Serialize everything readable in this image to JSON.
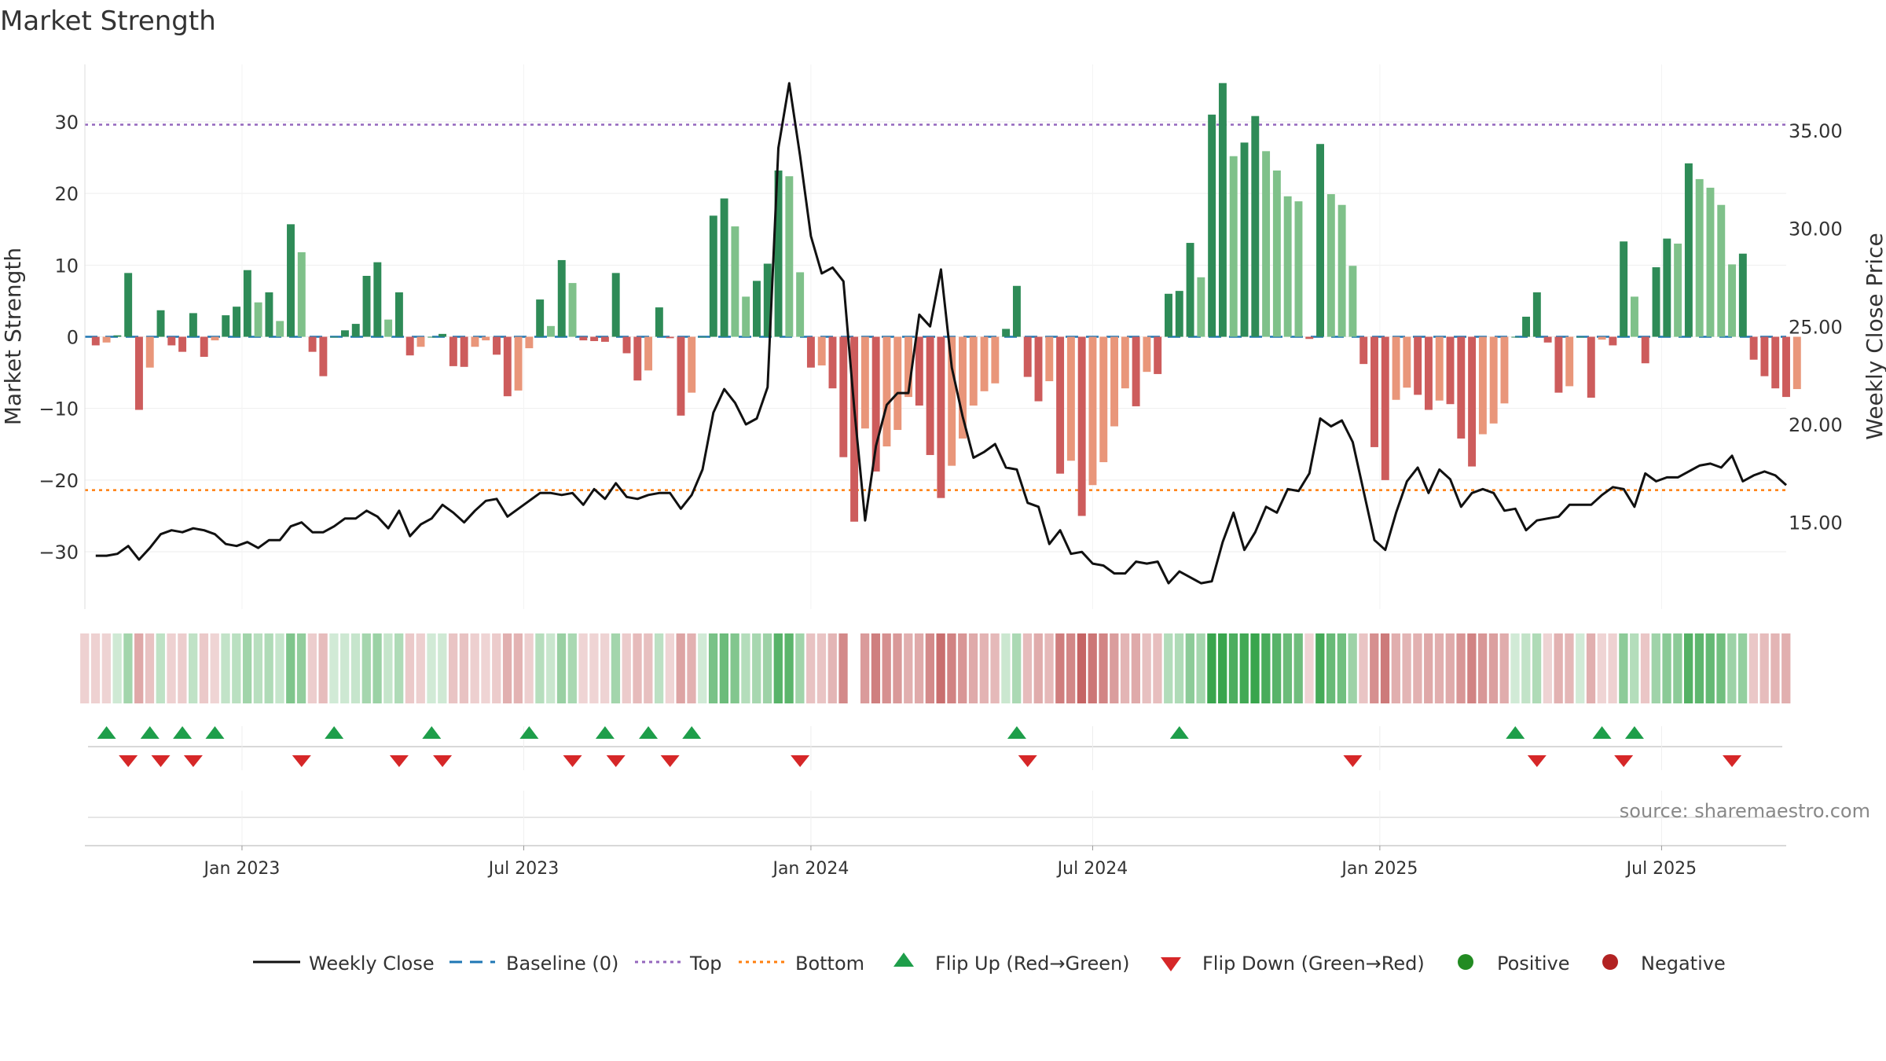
{
  "chart_data": {
    "type": "bar",
    "title": "Market Strength",
    "ylabel": "Market Strength",
    "y2label": "Weekly Close Price",
    "ylim": [
      -38,
      38
    ],
    "y2lim": [
      10.58,
      38.36
    ],
    "yticks": [
      30,
      20,
      10,
      0,
      -10,
      -20,
      -30
    ],
    "ytick_labels": [
      "30",
      "20",
      "10",
      "0",
      "−10",
      "−20",
      "−30"
    ],
    "y2ticks": [
      35,
      30,
      25,
      20,
      15
    ],
    "y2tick_labels": [
      "35.00",
      "30.00",
      "25.00",
      "20.00",
      "15.00"
    ],
    "x_range_weeks": [
      -1,
      156
    ],
    "x_ticks": [
      {
        "week": 13.5,
        "label": "Jan 2023"
      },
      {
        "week": 39.5,
        "label": "Jul 2023"
      },
      {
        "week": 66,
        "label": "Jan 2024"
      },
      {
        "week": 92,
        "label": "Jul 2024"
      },
      {
        "week": 118.5,
        "label": "Jan 2025"
      },
      {
        "week": 144.5,
        "label": "Jul 2025"
      }
    ],
    "top_level": 29.6,
    "bottom_level": -21.4,
    "strength": [
      -1.2,
      -0.8,
      0.2,
      8.9,
      -10.2,
      -4.3,
      3.7,
      -1.2,
      -2.1,
      3.3,
      -2.8,
      -0.5,
      3,
      4.2,
      9.3,
      4.8,
      6.2,
      2.2,
      15.7,
      11.8,
      -2.1,
      -5.5,
      0,
      0.9,
      1.8,
      8.5,
      10.4,
      2.4,
      6.2,
      -2.6,
      -1.4,
      0,
      0.4,
      -4.1,
      -4.2,
      -1.4,
      -0.5,
      -2.5,
      -8.3,
      -7.5,
      -1.6,
      5.2,
      1.5,
      10.7,
      7.5,
      -0.5,
      -0.6,
      -0.7,
      8.9,
      -2.3,
      -6.1,
      -4.7,
      4.1,
      -0.2,
      -11,
      -7.8,
      0,
      16.9,
      19.3,
      15.4,
      5.6,
      7.8,
      10.2,
      23.2,
      22.4,
      9,
      -4.3,
      -4,
      -7.2,
      -16.8,
      -25.8,
      -12.8,
      -18.8,
      -15.3,
      -13,
      -8.4,
      -9.6,
      -16.5,
      -22.5,
      -18,
      -14.2,
      -9.6,
      -7.6,
      -6.5,
      1.1,
      7.1,
      -5.6,
      -9,
      -6.2,
      -19.1,
      -17.3,
      -25,
      -20.7,
      -17.5,
      -12.5,
      -7.2,
      -9.7,
      -4.9,
      -5.2,
      6,
      6.4,
      13.1,
      8.3,
      31,
      35.4,
      25.2,
      27.1,
      30.8,
      25.9,
      23.2,
      19.6,
      18.9,
      -0.3,
      26.9,
      19.9,
      18.4,
      9.9,
      -3.8,
      -15.4,
      -20,
      -8.8,
      -7.1,
      -8.1,
      -10.2,
      -8.9,
      -9.4,
      -14.2,
      -18.1,
      -13.6,
      -12.1,
      -9.3,
      0,
      2.8,
      6.2,
      -0.8,
      -7.8,
      -6.9,
      0,
      -8.5,
      -0.4,
      -1.2,
      13.3,
      5.6,
      -3.7,
      9.7,
      13.7,
      13,
      24.2,
      22,
      20.8,
      18.4,
      10.1,
      11.6,
      -3.2,
      -5.5,
      -7.2,
      -8.4,
      -7.3
    ],
    "weekly_close": [
      13.3,
      13.3,
      13.4,
      13.8,
      13.1,
      13.7,
      14.4,
      14.6,
      14.5,
      14.7,
      14.6,
      14.4,
      13.9,
      13.8,
      14,
      13.7,
      14.1,
      14.1,
      14.8,
      15,
      14.5,
      14.5,
      14.8,
      15.2,
      15.2,
      15.6,
      15.3,
      14.7,
      15.6,
      14.3,
      14.9,
      15.2,
      15.9,
      15.5,
      15,
      15.6,
      16.1,
      16.2,
      15.3,
      15.7,
      16.1,
      16.5,
      16.5,
      16.4,
      16.5,
      15.9,
      16.7,
      16.2,
      17,
      16.3,
      16.2,
      16.4,
      16.5,
      16.5,
      15.7,
      16.4,
      17.7,
      20.6,
      21.8,
      21.1,
      20,
      20.3,
      21.9,
      34.1,
      37.4,
      33.7,
      29.6,
      27.7,
      28,
      27.3,
      20.8,
      15.1,
      18.9,
      21,
      21.6,
      21.6,
      25.6,
      25,
      27.9,
      22.9,
      20.4,
      18.3,
      18.6,
      19,
      17.8,
      17.7,
      16,
      15.8,
      13.9,
      14.6,
      13.4,
      13.5,
      12.9,
      12.8,
      12.4,
      12.4,
      13,
      12.9,
      13,
      11.9,
      12.5,
      12.2,
      11.9,
      12,
      14,
      15.5,
      13.6,
      14.5,
      15.8,
      15.5,
      16.7,
      16.6,
      17.5,
      20.3,
      19.9,
      20.2,
      19.1,
      16.6,
      14.1,
      13.6,
      15.5,
      17.1,
      17.8,
      16.5,
      17.7,
      17.2,
      15.8,
      16.5,
      16.7,
      16.5,
      15.6,
      15.7,
      14.6,
      15.1,
      15.2,
      15.3,
      15.9,
      15.9,
      15.9,
      16.4,
      16.8,
      16.7,
      15.8,
      17.5,
      17.1,
      17.3,
      17.3,
      17.6,
      17.9,
      18,
      17.8,
      18.4,
      17.1,
      17.4,
      17.6,
      17.4,
      16.9
    ],
    "heat_strip": {
      "start_week": -1,
      "end_week": 156,
      "gap_week": 70
    },
    "flip_up_weeks": [
      1,
      5,
      8,
      11,
      22,
      31,
      40,
      47,
      51,
      55,
      85,
      100,
      131,
      139,
      142
    ],
    "flip_down_weeks": [
      3,
      6,
      9,
      19,
      28,
      32,
      44,
      48,
      53,
      65,
      86,
      116,
      133,
      141,
      151
    ],
    "legend": [
      "Weekly Close",
      "Baseline (0)",
      "Top",
      "Bottom",
      "Flip Up (Red→Green)",
      "Flip Down (Green→Red)",
      "Positive",
      "Negative"
    ],
    "legend_placement": "bottom-center",
    "source_note": "source: sharemaestro.com",
    "colors": {
      "pos_strong": "#2e8b57",
      "pos_light": "#7fc18a",
      "neg_strong": "#cd5c5c",
      "neg_light": "#e9967a",
      "close": "#111111",
      "baseline": "#1f77b4",
      "top": "#9467bd",
      "bottom": "#ff7f0e",
      "flip_up": "#1e9e4a",
      "flip_down": "#d62728",
      "positive_dot": "#228b22",
      "negative_dot": "#b22222"
    }
  }
}
